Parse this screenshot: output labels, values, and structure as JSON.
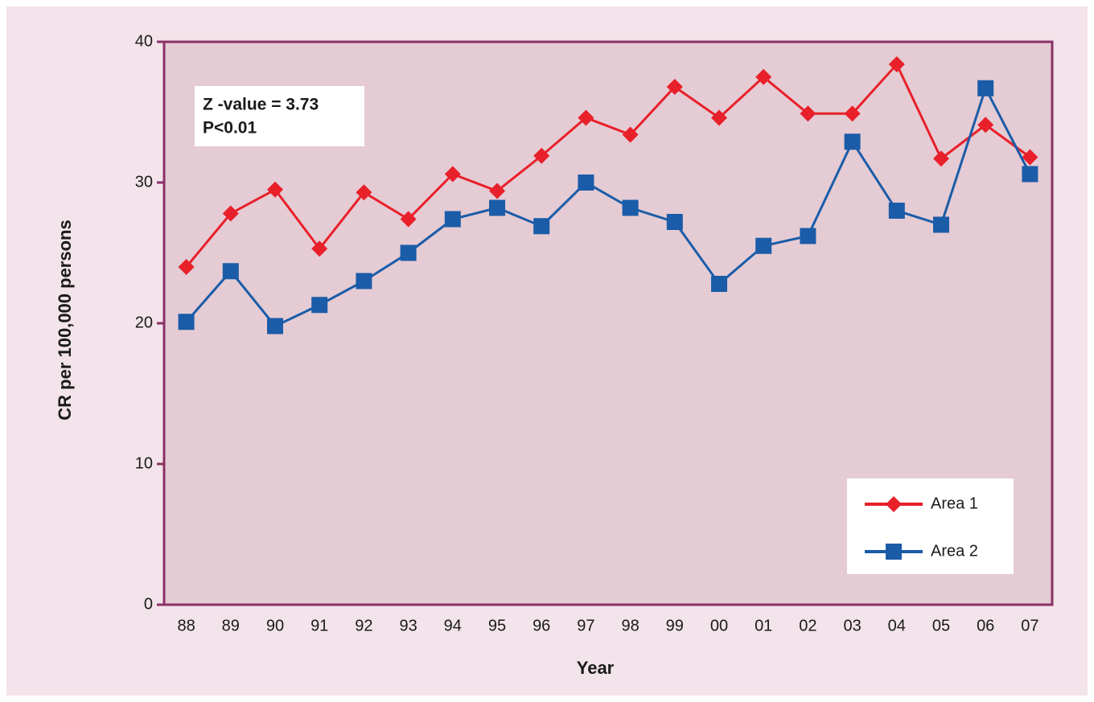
{
  "chart_data": {
    "type": "line",
    "annotations": [
      "Z -value = 3.73",
      "P<0.01"
    ],
    "x_label": "Year",
    "y_label": "CR per 100,000 persons",
    "categories": [
      "88",
      "89",
      "90",
      "91",
      "92",
      "93",
      "94",
      "95",
      "96",
      "97",
      "98",
      "99",
      "00",
      "01",
      "02",
      "03",
      "04",
      "05",
      "06",
      "07"
    ],
    "series": [
      {
        "name": "Area 1",
        "color": "#e8202a",
        "marker": "diamond",
        "values": [
          24.0,
          27.8,
          29.5,
          25.3,
          29.3,
          27.4,
          30.6,
          29.4,
          31.9,
          34.6,
          33.4,
          36.8,
          34.6,
          37.5,
          34.9,
          34.9,
          38.4,
          31.7,
          34.1,
          31.8
        ]
      },
      {
        "name": "Area 2",
        "color": "#1a5ca8",
        "marker": "square",
        "values": [
          20.1,
          23.7,
          19.8,
          21.3,
          23.0,
          25.0,
          27.4,
          28.2,
          26.9,
          30.0,
          28.2,
          27.2,
          22.8,
          25.5,
          26.2,
          32.9,
          28.0,
          27.0,
          36.7,
          30.6
        ]
      }
    ],
    "ylim": [
      0,
      40
    ],
    "yticks": [
      0,
      10,
      20,
      30,
      40
    ],
    "legend": "lower right"
  }
}
